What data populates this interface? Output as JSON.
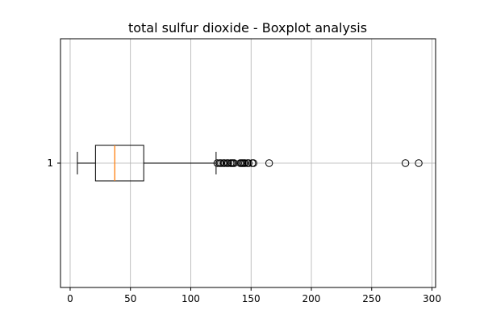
{
  "chart_data": {
    "type": "boxplot",
    "title": "total sulfur dioxide - Boxplot analysis",
    "orientation": "horizontal",
    "xlabel": "",
    "ylabel": "",
    "xlim": [
      -8,
      303
    ],
    "xticks": [
      0,
      50,
      100,
      150,
      200,
      250,
      300
    ],
    "xtick_labels": [
      "0",
      "50",
      "100",
      "150",
      "200",
      "250",
      "300"
    ],
    "ytick_labels": [
      "1"
    ],
    "grid": true,
    "boxes": [
      {
        "label": "1",
        "whisker_low": 6,
        "q1": 21,
        "median": 37,
        "q3": 61,
        "whisker_high": 121,
        "outliers": [
          122,
          124,
          125,
          127,
          128,
          130,
          131,
          133,
          134,
          135,
          136,
          141,
          142,
          143,
          144,
          145,
          147,
          148,
          151,
          152,
          165,
          278,
          289
        ]
      }
    ],
    "colors": {
      "box": "#000000",
      "median": "#ff7f0e",
      "grid": "#b0b0b0",
      "outlier": "#000000"
    }
  }
}
